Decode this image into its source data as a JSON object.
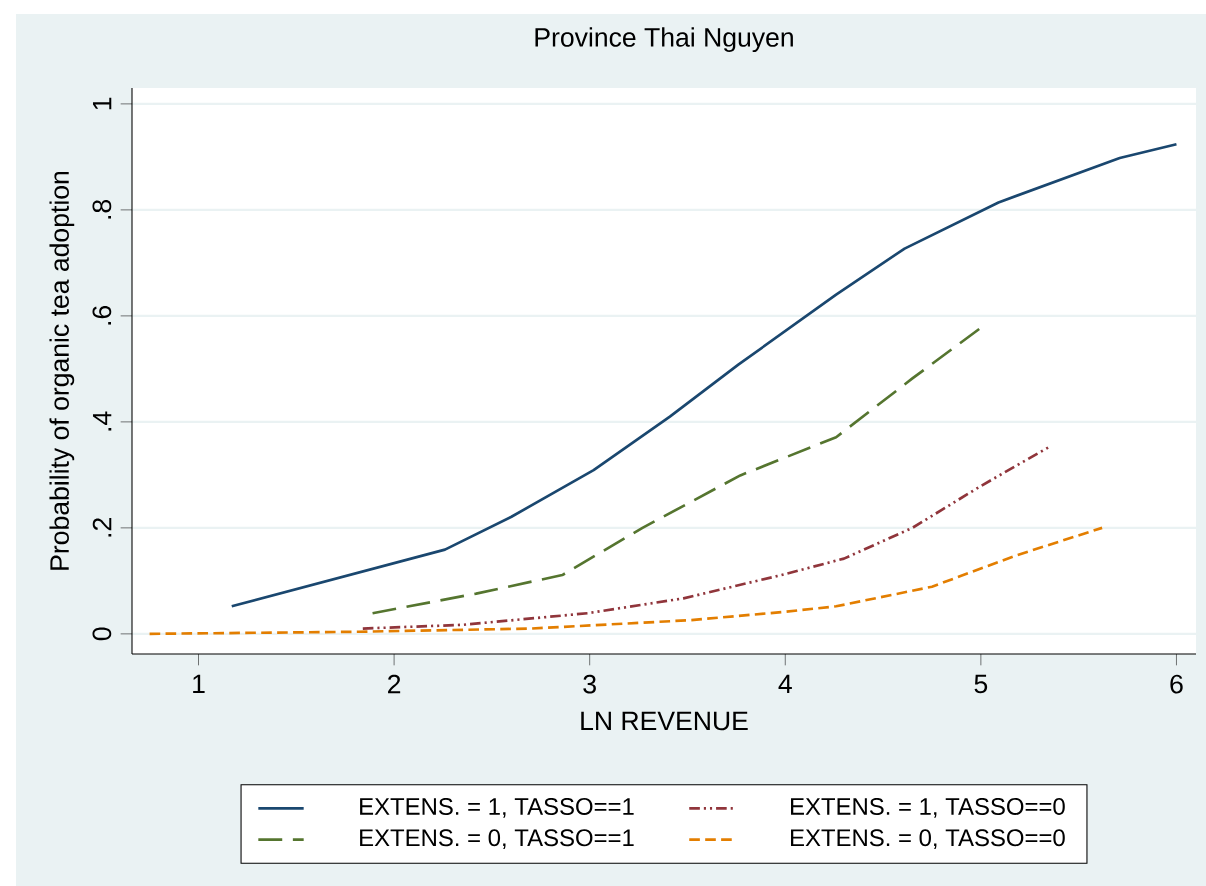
{
  "chart_data": {
    "type": "line",
    "title": "Province Thai Nguyen",
    "xlabel": "LN REVENUE",
    "ylabel": "Probability of organic tea adoption",
    "xlim": [
      0.66,
      6.1
    ],
    "ylim": [
      -0.038,
      1.03
    ],
    "xticks": [
      1,
      2,
      3,
      4,
      5,
      6
    ],
    "yticks": [
      0,
      {
        "value": 0.2,
        "label": ".2"
      },
      {
        "value": 0.4,
        "label": ".4"
      },
      {
        "value": 0.6,
        "label": ".6"
      },
      {
        "value": 0.8,
        "label": ".8"
      },
      1
    ],
    "grid": "y",
    "legend": "bottom",
    "marker": "none",
    "series": [
      {
        "name": "EXTENS. = 1, TASSO==1",
        "color": "#1a476f",
        "line_style": "solid",
        "x": [
          1.17,
          2.26,
          2.6,
          3.02,
          3.41,
          3.76,
          4.26,
          4.61,
          5.09,
          5.71,
          6.0
        ],
        "values": [
          0.052,
          0.159,
          0.221,
          0.309,
          0.41,
          0.508,
          0.64,
          0.727,
          0.814,
          0.898,
          0.924
        ]
      },
      {
        "name": "EXTENS. = 1, TASSO==0",
        "color": "#90353b",
        "line_style": "dotted",
        "x": [
          1.84,
          2.35,
          2.99,
          3.48,
          3.98,
          4.3,
          4.65,
          5.0,
          5.36
        ],
        "values": [
          0.01,
          0.017,
          0.039,
          0.067,
          0.111,
          0.142,
          0.2,
          0.279,
          0.355
        ]
      },
      {
        "name": "EXTENS. = 0, TASSO==1",
        "color": "#55752f",
        "line_style": "dashed",
        "x": [
          1.89,
          2.42,
          2.86,
          3.27,
          3.77,
          4.26,
          4.65,
          5.02
        ],
        "values": [
          0.039,
          0.076,
          0.111,
          0.2,
          0.299,
          0.371,
          0.482,
          0.583
        ]
      },
      {
        "name": "EXTENS. = 0, TASSO==0",
        "color": "#e37e00",
        "line_style": "dashed",
        "x": [
          0.75,
          1.82,
          2.7,
          3.52,
          3.98,
          4.26,
          4.75,
          5.18,
          5.62
        ],
        "values": [
          0.0,
          0.004,
          0.01,
          0.026,
          0.041,
          0.052,
          0.089,
          0.148,
          0.2
        ]
      }
    ]
  }
}
